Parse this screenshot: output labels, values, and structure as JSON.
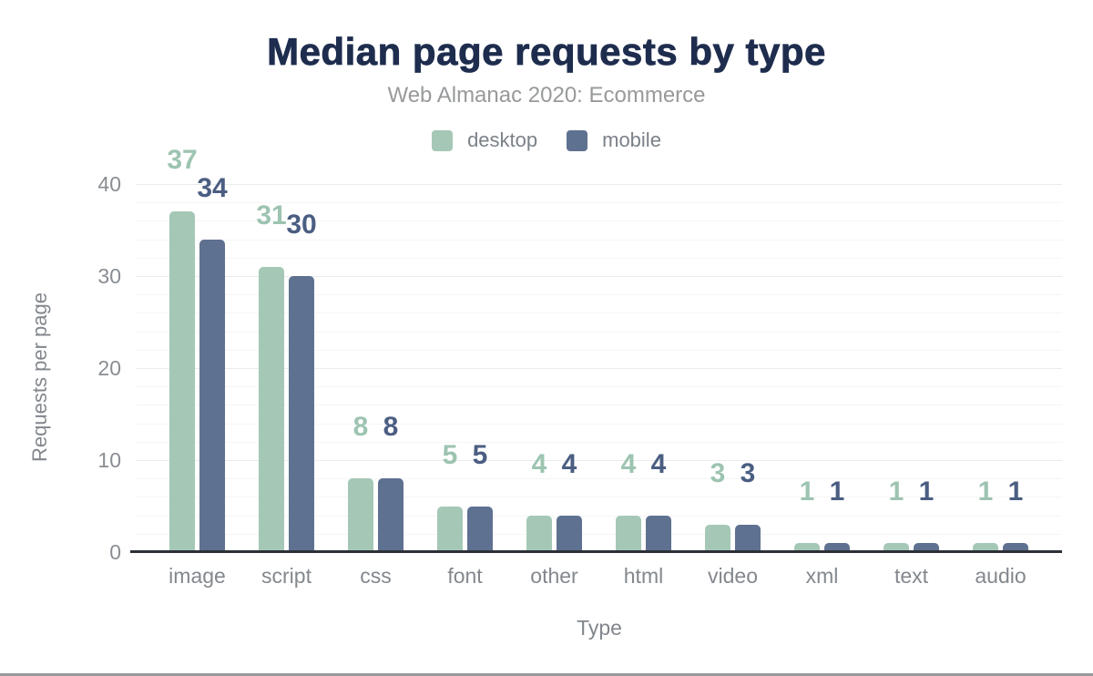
{
  "chart_data": {
    "type": "bar",
    "title": "Median page requests by type",
    "subtitle": "Web Almanac 2020: Ecommerce",
    "xlabel": "Type",
    "ylabel": "Requests per page",
    "categories": [
      "image",
      "script",
      "css",
      "font",
      "other",
      "html",
      "video",
      "xml",
      "text",
      "audio"
    ],
    "series": [
      {
        "name": "desktop",
        "color": "#a5c8b6",
        "label_color": "#9dc4b1",
        "values": [
          37,
          31,
          8,
          5,
          4,
          4,
          3,
          1,
          1,
          1
        ]
      },
      {
        "name": "mobile",
        "color": "#5f7190",
        "label_color": "#4b5e82",
        "values": [
          34,
          30,
          8,
          5,
          4,
          4,
          3,
          1,
          1,
          1
        ]
      }
    ],
    "ylim": [
      0,
      40
    ],
    "yticks": [
      0,
      10,
      20,
      30,
      40
    ],
    "minor_grid_step": 2,
    "grid": true,
    "legend_position": "top",
    "data_labels": true
  },
  "style": {
    "title_color": "#1e2d4e",
    "subtitle_color": "#97999b",
    "axis_text_color": "#83888e",
    "axis_line_color": "#2c3036",
    "major_grid_color": "#eaebec",
    "minor_grid_color": "#f5f5f6",
    "bottom_rule_color": "#98999b"
  }
}
